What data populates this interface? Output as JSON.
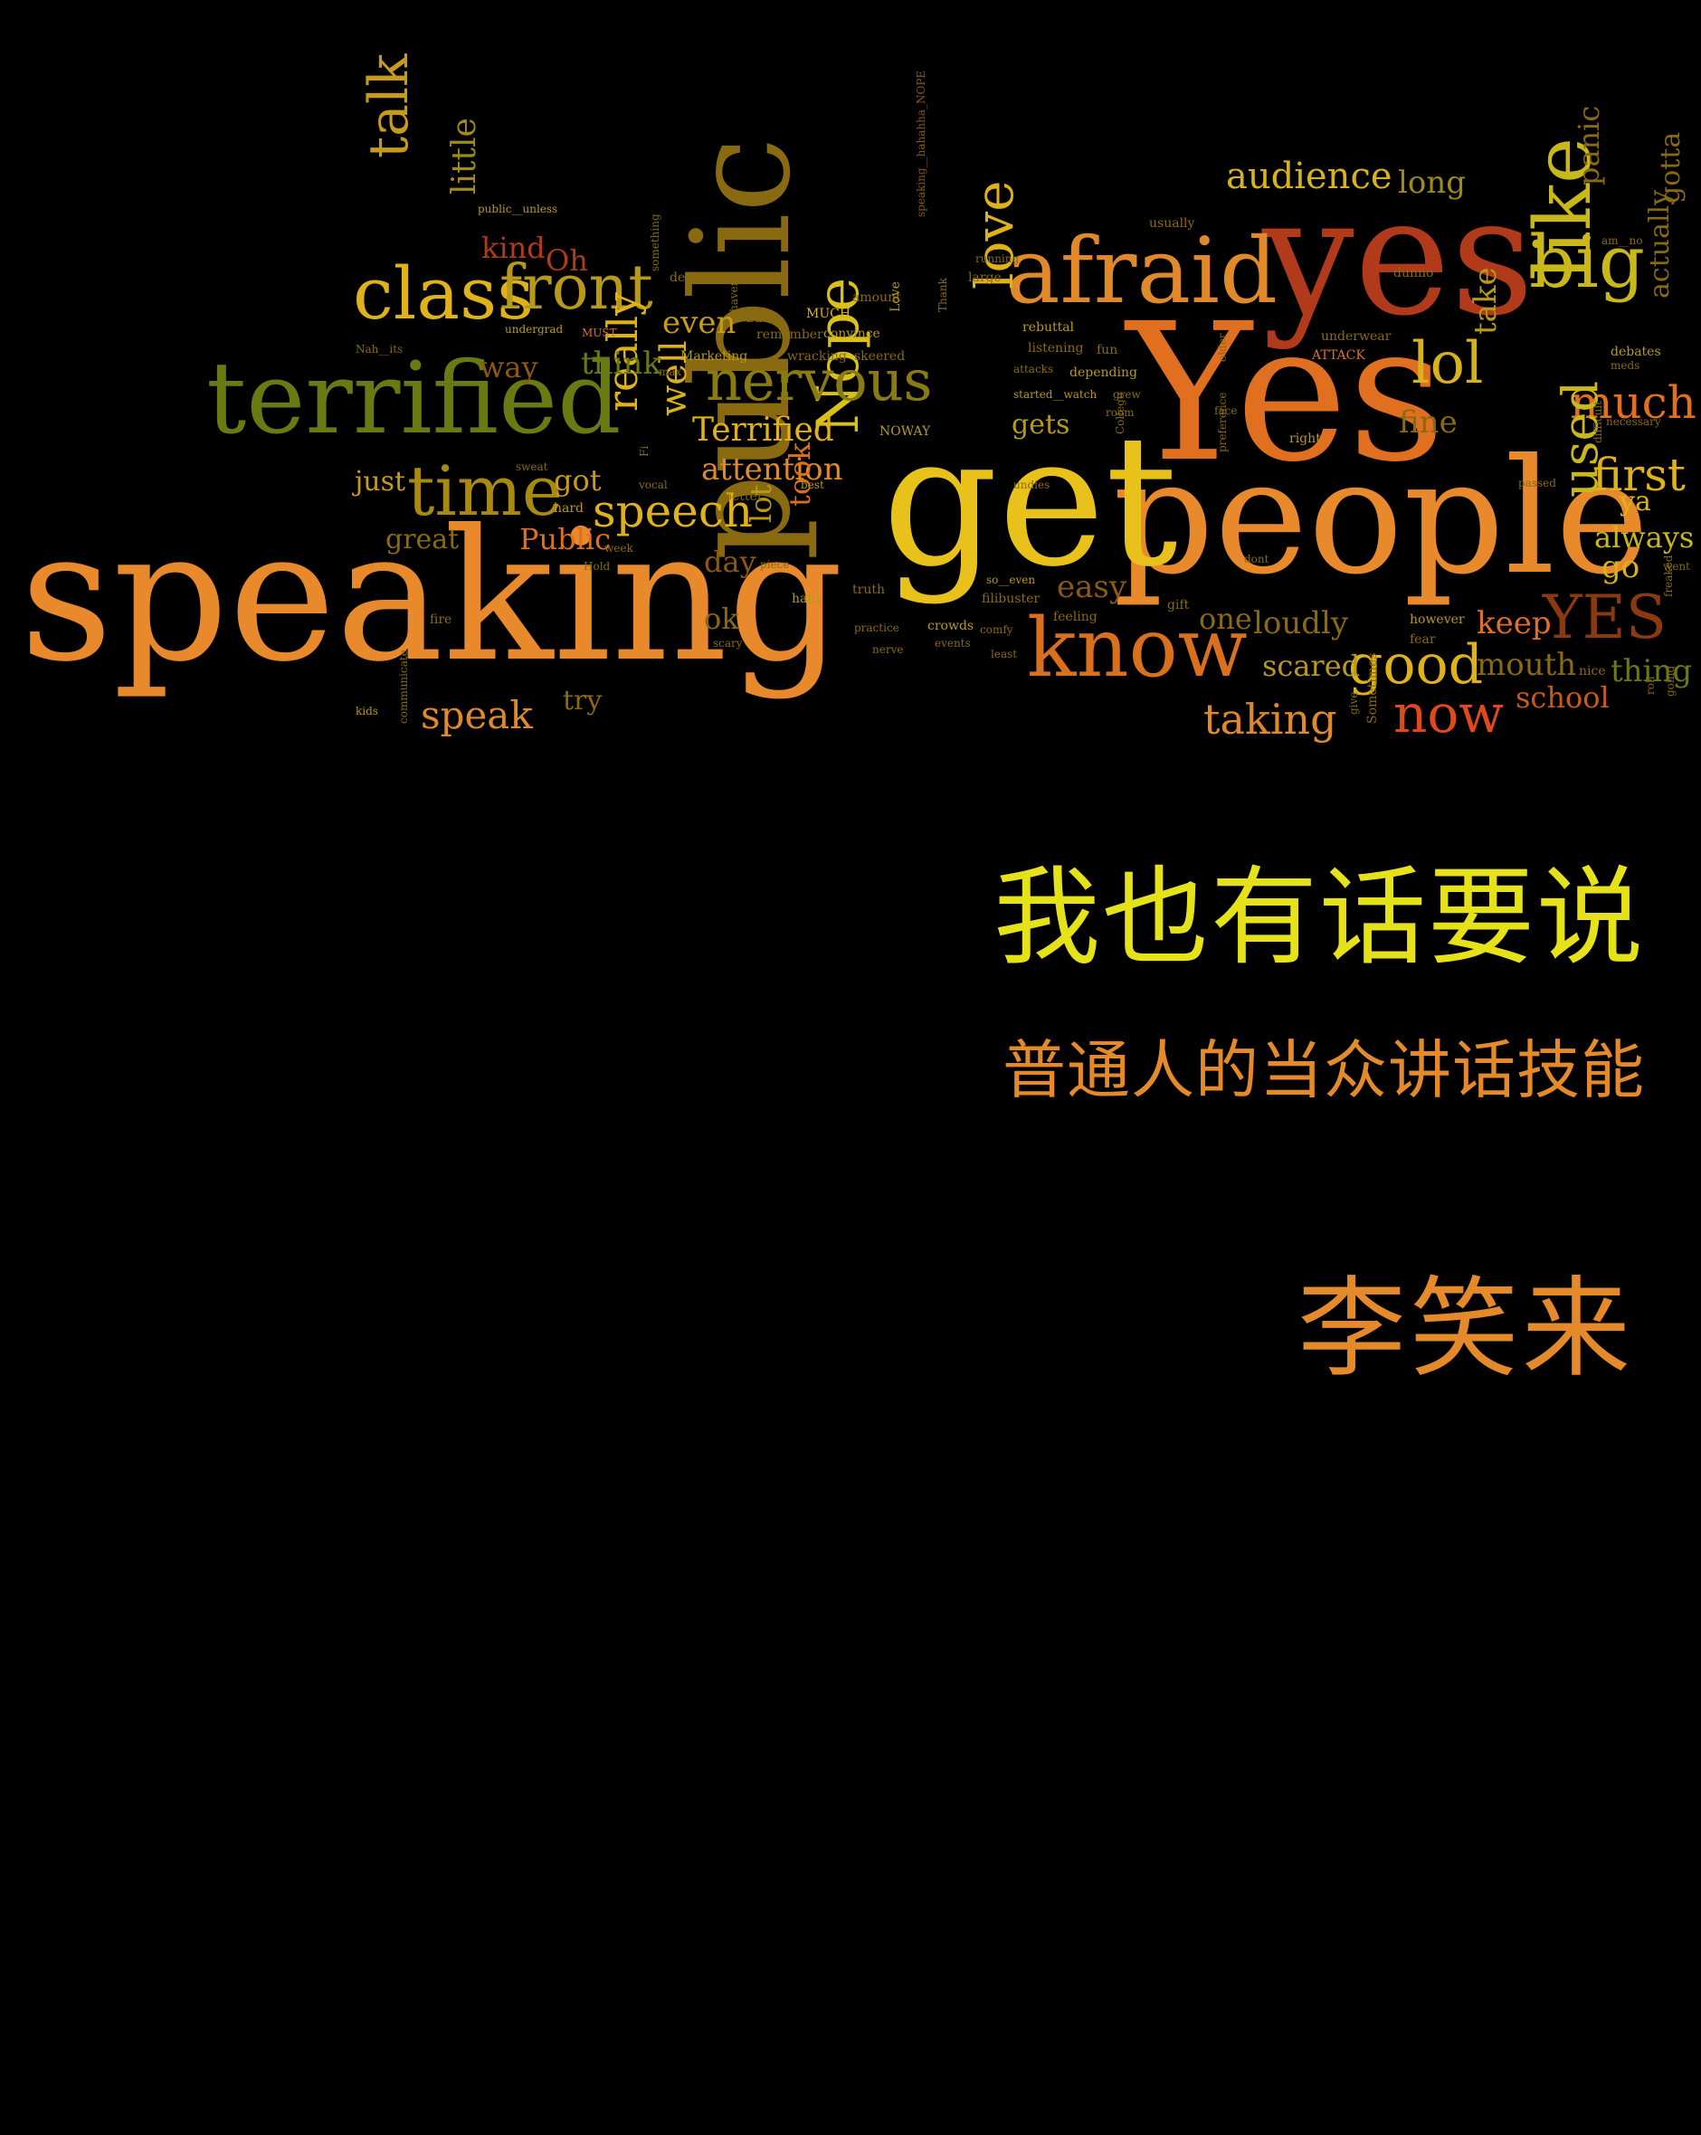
{
  "colors": {
    "background": "#000000",
    "title": "#e6e21a",
    "subtitle": "#e58a2a",
    "author": "#e58a2a"
  },
  "cover": {
    "title": "我也有话要说",
    "subtitle": "普通人的当众讲话技能",
    "author": "李笑来"
  },
  "word_cloud": {
    "words": [
      "speaking",
      "public",
      "people",
      "get",
      "Yes",
      "yes",
      "terrified",
      "afraid",
      "know",
      "class",
      "front",
      "talk",
      "time",
      "nervous",
      "speech",
      "love",
      "like",
      "big",
      "lol",
      "much",
      "first",
      "good",
      "now",
      "used",
      "audience",
      "long",
      "panic",
      "Nope",
      "really",
      "well",
      "Terrified",
      "attention",
      "just",
      "got",
      "great",
      "Public",
      "speak",
      "try",
      "day",
      "ok",
      "lot",
      "took",
      "even",
      "think",
      "way",
      "kind",
      "little",
      "Oh",
      "YES",
      "keep",
      "mouth",
      "school",
      "thing",
      "always",
      "go",
      "ya",
      "fine",
      "take",
      "actually",
      "gotta",
      "easy",
      "one",
      "loudly",
      "scared",
      "taking",
      "gets",
      "gift",
      "however",
      "fear",
      "nice",
      "sweat",
      "hard",
      "better",
      "best",
      "truth",
      "haha",
      "scary",
      "fire",
      "kids",
      "communicate",
      "remember",
      "convince",
      "MUCH",
      "deal",
      "back",
      "undergrad",
      "MUST",
      "Marketing",
      "wracking",
      "skeered",
      "amount",
      "Love",
      "Thank",
      "speaking__hahahha_NOPE",
      "large",
      "running",
      "rebuttal",
      "attacks",
      "depending",
      "grew",
      "started__watch",
      "fun",
      "listening",
      "room",
      "College",
      "ATTACK",
      "underwear",
      "debates",
      "meds",
      "necessary",
      "difficult",
      "passed",
      "freaked",
      "went",
      "roll",
      "going",
      "Sometimes",
      "give",
      "dunno",
      "usually",
      "older",
      "face",
      "preference",
      "right",
      "NOWAY",
      "vocal",
      "Hold",
      "week",
      "piece",
      "practice",
      "nerve",
      "nervous",
      "crowds",
      "events",
      "comfy",
      "least",
      "feeling",
      "filibuster",
      "so__even",
      "public__unless",
      "something",
      "haven't",
      "Nah__its",
      "max",
      "Fi",
      "undies",
      "dont",
      "am__no"
    ]
  }
}
